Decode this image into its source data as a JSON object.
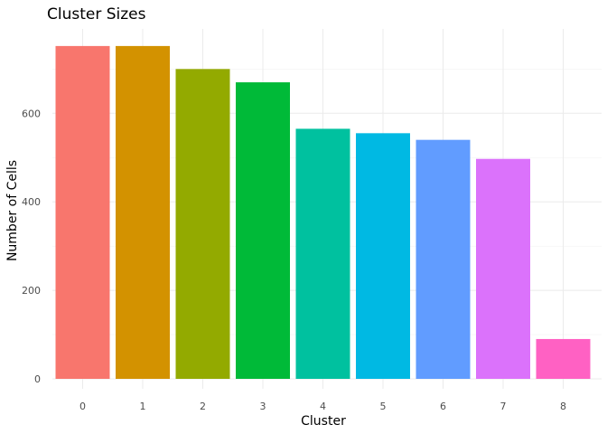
{
  "chart_data": {
    "type": "bar",
    "title": "Cluster Sizes",
    "xlabel": "Cluster",
    "ylabel": "Number of Cells",
    "categories": [
      "0",
      "1",
      "2",
      "3",
      "4",
      "5",
      "6",
      "7",
      "8"
    ],
    "values": [
      752,
      752,
      700,
      670,
      565,
      555,
      540,
      497,
      90
    ],
    "colors": [
      "#F8766D",
      "#D39200",
      "#93AA00",
      "#00BA38",
      "#00C19F",
      "#00B9E3",
      "#619CFF",
      "#DB72FB",
      "#FF61C3"
    ],
    "yticks": [
      0,
      200,
      400,
      600
    ],
    "ylim": [
      0,
      790
    ],
    "grid": true,
    "legend": "none"
  }
}
